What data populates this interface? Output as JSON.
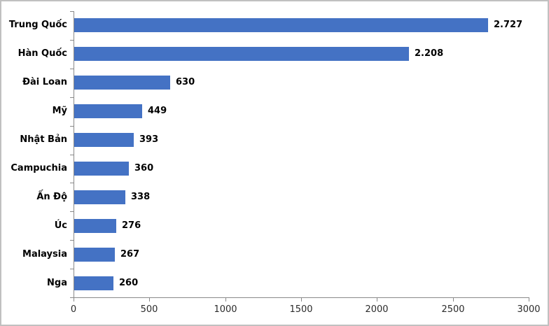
{
  "chart_data": {
    "type": "bar",
    "orientation": "horizontal",
    "title": "",
    "xlabel": "",
    "ylabel": "",
    "grid": false,
    "legend": false,
    "categories": [
      "Trung Quốc",
      "Hàn Quốc",
      "Đài Loan",
      "Mỹ",
      "Nhật Bản",
      "Campuchia",
      "Ấn Độ",
      "Úc",
      "Malaysia",
      "Nga"
    ],
    "values": [
      2727,
      2208,
      630,
      449,
      393,
      360,
      338,
      276,
      267,
      260
    ],
    "value_labels": [
      "2.727",
      "2.208",
      "630",
      "449",
      "393",
      "360",
      "338",
      "276",
      "267",
      "260"
    ],
    "x_ticks": [
      "0",
      "500",
      "1000",
      "1500",
      "2000",
      "2500",
      "3000"
    ],
    "x_tick_values": [
      0,
      500,
      1000,
      1500,
      2000,
      2500,
      3000
    ],
    "xlim": [
      0,
      3000
    ],
    "bar_color": "#4472C4",
    "axis_color": "#898989",
    "label_color": "#000000",
    "tick_label_color": "#2b2b2b",
    "frame_border_color": "#c0c0c0"
  }
}
